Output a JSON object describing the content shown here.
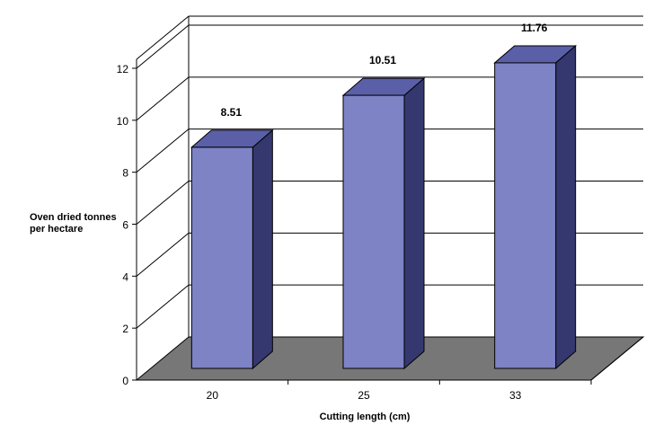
{
  "chart_data": {
    "type": "bar",
    "categories": [
      "20",
      "25",
      "33"
    ],
    "values": [
      8.51,
      10.51,
      11.76
    ],
    "data_labels": [
      "8.51",
      "10.51",
      "11.76"
    ],
    "y_ticks": [
      "0",
      "2",
      "4",
      "6",
      "8",
      "10",
      "12"
    ],
    "ylim": [
      0,
      12
    ],
    "xlabel": "Cutting length (cm)",
    "ylabel_line1": "Oven dried tonnes",
    "ylabel_line2": "per hectare",
    "grid": true,
    "style": "3d",
    "colors": {
      "bar_front": "#7d83c4",
      "bar_top": "#5a5fa8",
      "bar_side": "#35386f",
      "floor": "#777777"
    }
  }
}
